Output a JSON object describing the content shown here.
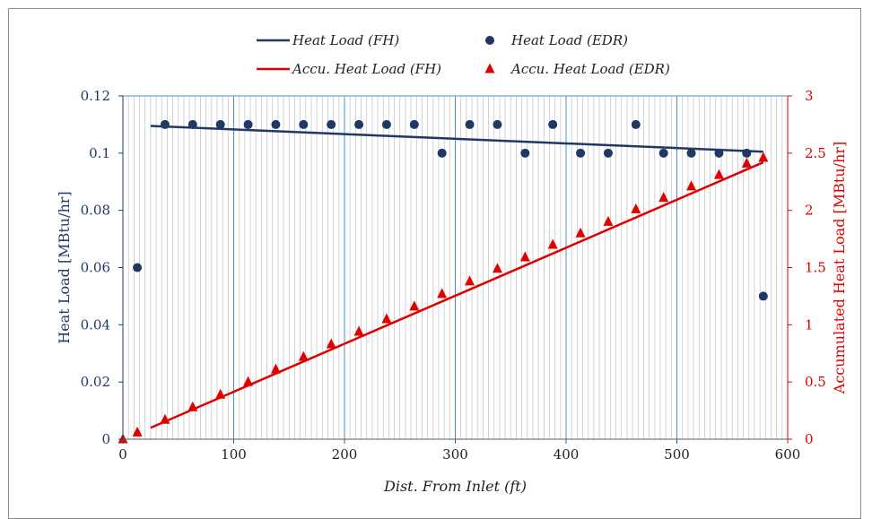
{
  "chart_data": {
    "type": "line",
    "xlabel": "Dist. From Inlet (ft)",
    "ylabel_left": "Heat Load [MBtu/hr]",
    "ylabel_right": "Accumulated Heat Load [MBtu/hr]",
    "xlim": [
      0,
      600
    ],
    "ylim_left": [
      0,
      0.12
    ],
    "ylim_right": [
      0,
      3
    ],
    "x_ticks": [
      "0",
      "100",
      "200",
      "300",
      "400",
      "500",
      "600"
    ],
    "y_left_ticks": [
      "0",
      "0.02",
      "0.04",
      "0.06",
      "0.08",
      "0.1",
      "0.12"
    ],
    "y_right_ticks": [
      "0",
      "0.5",
      "1",
      "1.5",
      "2",
      "2.5",
      "3"
    ],
    "grid": true,
    "legend": [
      {
        "label": "Heat Load (FH)"
      },
      {
        "label": "Heat Load (EDR)"
      },
      {
        "label": "Accu. Heat Load (FH)"
      },
      {
        "label": "Accu. Heat Load (EDR)"
      }
    ],
    "series": [
      {
        "name": "Heat Load (FH)",
        "kind": "line",
        "axis": "left",
        "color": "#1f3864",
        "x": [
          25,
          578
        ],
        "y": [
          0.1095,
          0.1005
        ]
      },
      {
        "name": "Heat Load (EDR)",
        "kind": "scatter-circle",
        "axis": "left",
        "color": "#1f3864",
        "x": [
          13,
          38,
          63,
          88,
          113,
          138,
          163,
          188,
          213,
          238,
          263,
          288,
          313,
          338,
          363,
          388,
          413,
          438,
          463,
          488,
          513,
          538,
          563,
          578
        ],
        "y": [
          0.06,
          0.11,
          0.11,
          0.11,
          0.11,
          0.11,
          0.11,
          0.11,
          0.11,
          0.11,
          0.11,
          0.1,
          0.11,
          0.11,
          0.1,
          0.11,
          0.1,
          0.1,
          0.11,
          0.1,
          0.1,
          0.1,
          0.1,
          0.05
        ]
      },
      {
        "name": "Accu. Heat Load (FH)",
        "kind": "line",
        "axis": "right",
        "color": "#e00000",
        "x": [
          25,
          578
        ],
        "y": [
          0.1,
          2.42
        ]
      },
      {
        "name": "Accu. Heat Load (EDR)",
        "kind": "scatter-triangle",
        "axis": "right",
        "color": "#e00000",
        "x": [
          0,
          13,
          38,
          63,
          88,
          113,
          138,
          163,
          188,
          213,
          238,
          263,
          288,
          313,
          338,
          363,
          388,
          413,
          438,
          463,
          488,
          513,
          538,
          563,
          578
        ],
        "y": [
          0,
          0.06,
          0.17,
          0.28,
          0.39,
          0.5,
          0.61,
          0.72,
          0.83,
          0.94,
          1.05,
          1.16,
          1.27,
          1.38,
          1.49,
          1.59,
          1.7,
          1.8,
          1.9,
          2.01,
          2.11,
          2.21,
          2.31,
          2.41,
          2.46
        ]
      }
    ]
  }
}
